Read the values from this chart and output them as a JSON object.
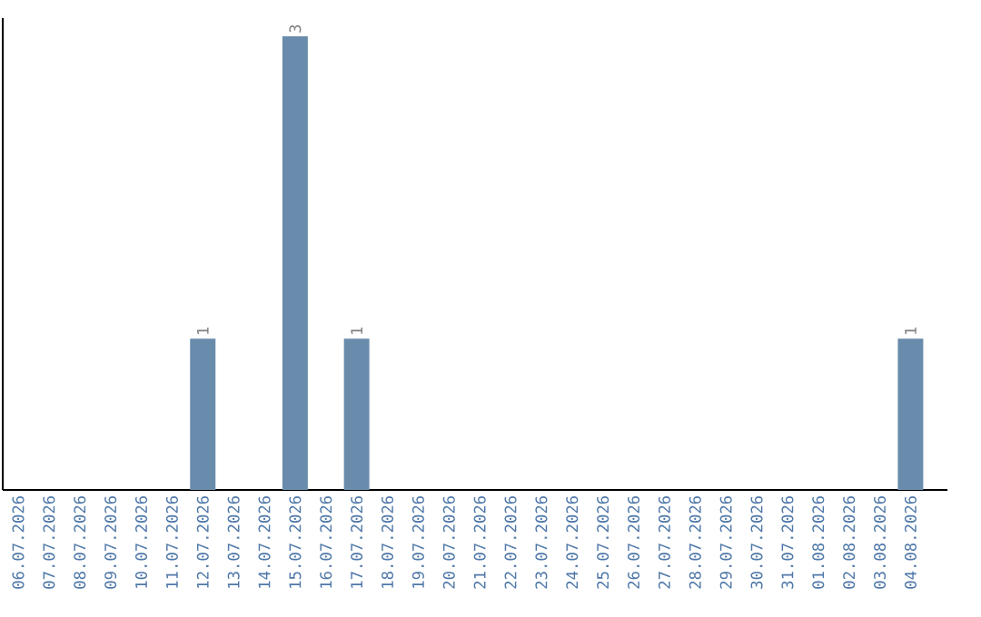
{
  "chart_data": {
    "type": "bar",
    "categories": [
      "06.07.2026",
      "07.07.2026",
      "08.07.2026",
      "09.07.2026",
      "10.07.2026",
      "11.07.2026",
      "12.07.2026",
      "13.07.2026",
      "14.07.2026",
      "15.07.2026",
      "16.07.2026",
      "17.07.2026",
      "18.07.2026",
      "19.07.2026",
      "20.07.2026",
      "21.07.2026",
      "22.07.2026",
      "23.07.2026",
      "24.07.2026",
      "25.07.2026",
      "26.07.2026",
      "27.07.2026",
      "28.07.2026",
      "29.07.2026",
      "30.07.2026",
      "31.07.2026",
      "01.08.2026",
      "02.08.2026",
      "03.08.2026",
      "04.08.2026"
    ],
    "values": [
      0,
      0,
      0,
      0,
      0,
      0,
      1,
      0,
      0,
      3,
      0,
      1,
      0,
      0,
      0,
      0,
      0,
      0,
      0,
      0,
      0,
      0,
      0,
      0,
      0,
      0,
      0,
      0,
      0,
      1
    ],
    "value_labels": [
      null,
      null,
      null,
      null,
      null,
      null,
      "1",
      null,
      null,
      "3",
      null,
      "1",
      null,
      null,
      null,
      null,
      null,
      null,
      null,
      null,
      null,
      null,
      null,
      null,
      null,
      null,
      null,
      null,
      null,
      "1"
    ],
    "color": "#6a8cac",
    "tick_labels": "x"
  }
}
